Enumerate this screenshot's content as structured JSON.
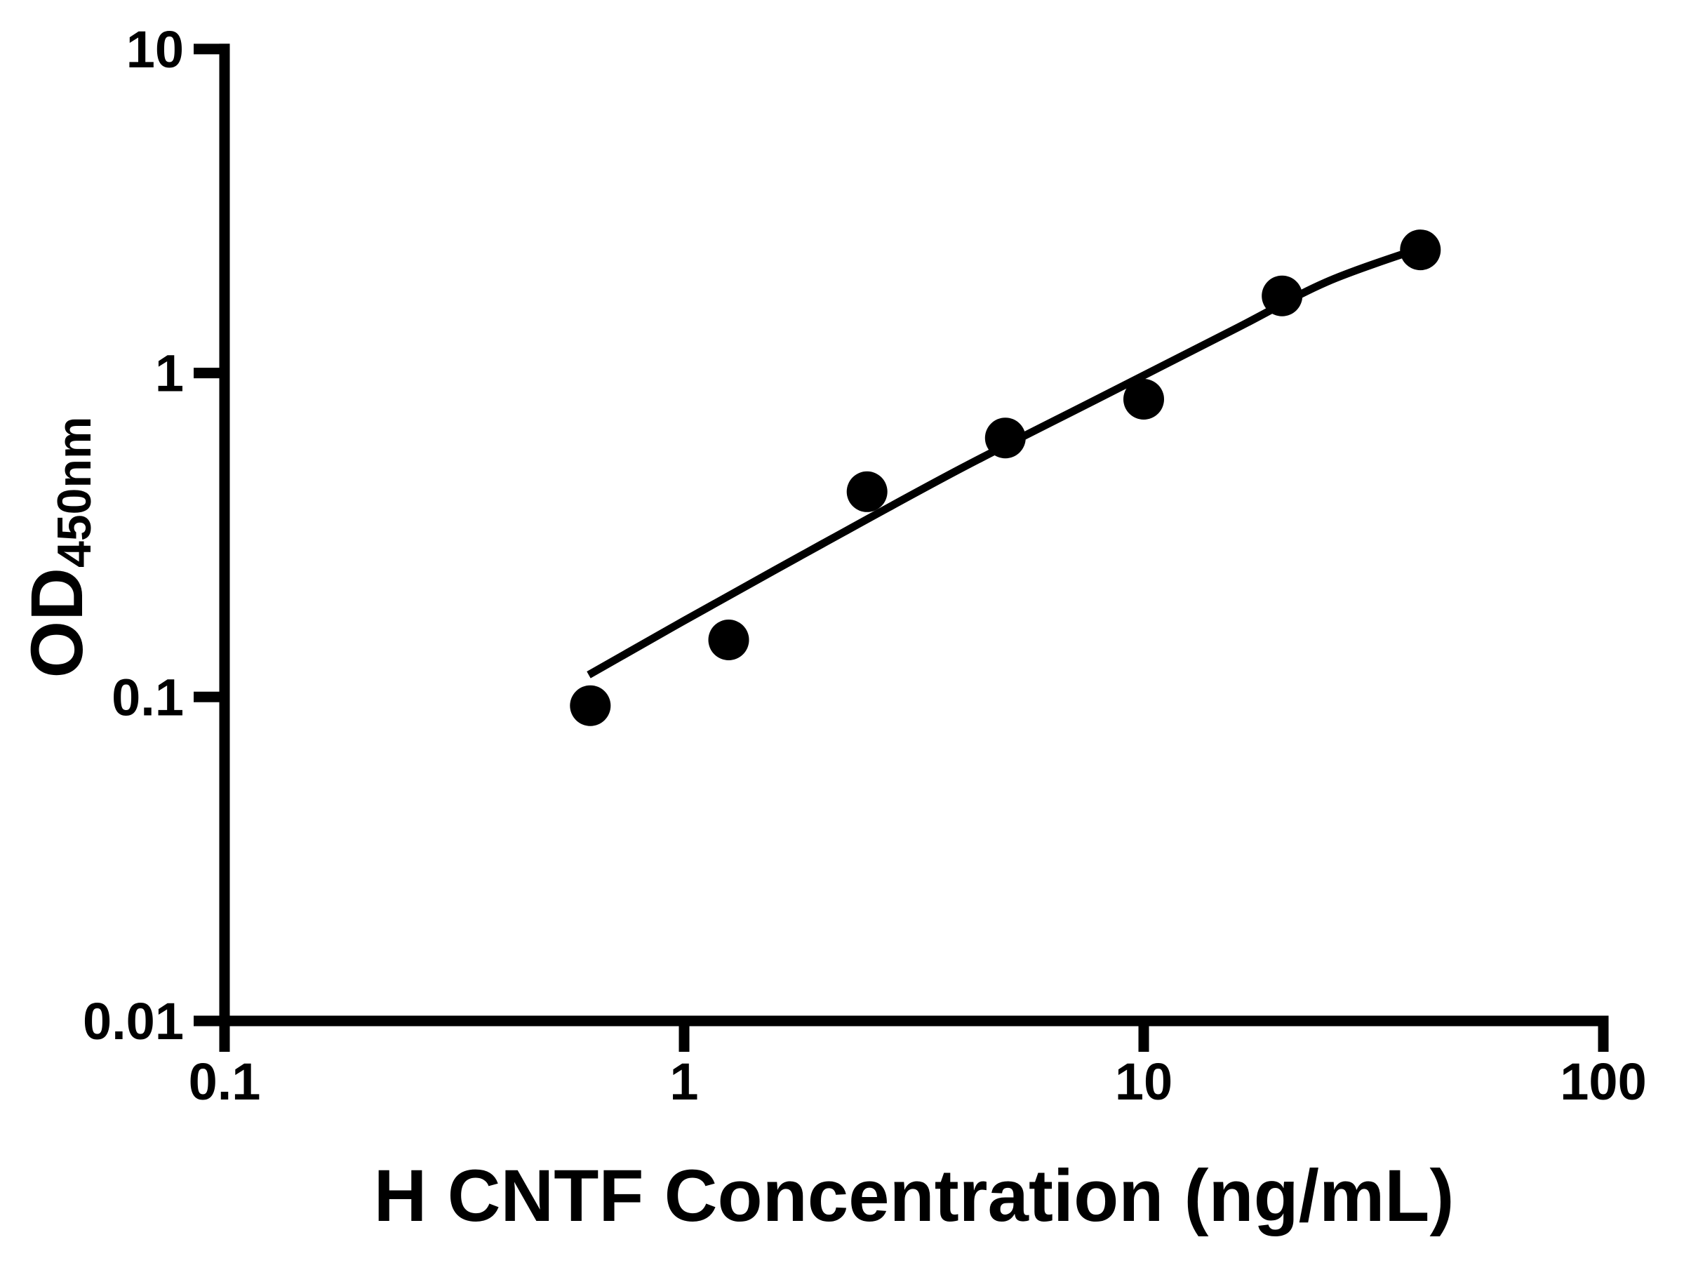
{
  "figure": {
    "kind": "ELISA standard curve plot",
    "background_color": "#ffffff",
    "foreground_color": "#000000"
  },
  "chart_data": {
    "type": "scatter",
    "title": "",
    "xlabel": "H CNTF Concentration (ng/mL)",
    "ylabel_main": "OD",
    "ylabel_subscript": "450nm",
    "x_scale": "log",
    "y_scale": "log",
    "xlim": [
      0.1,
      100
    ],
    "ylim": [
      0.01,
      10
    ],
    "x_ticks": [
      {
        "value": 0.1,
        "label": "0.1"
      },
      {
        "value": 1,
        "label": "1"
      },
      {
        "value": 10,
        "label": "10"
      },
      {
        "value": 100,
        "label": "100"
      }
    ],
    "y_ticks": [
      {
        "value": 10,
        "label": "10"
      },
      {
        "value": 1,
        "label": "1"
      },
      {
        "value": 0.1,
        "label": "0.1"
      },
      {
        "value": 0.01,
        "label": "0.01"
      }
    ],
    "grid": false,
    "legend": "none",
    "marker": {
      "shape": "circle",
      "color": "#000000",
      "radius_px": 29
    },
    "line_color": "#000000",
    "points": [
      {
        "x": 0.625,
        "y": 0.094
      },
      {
        "x": 1.25,
        "y": 0.15
      },
      {
        "x": 2.5,
        "y": 0.43
      },
      {
        "x": 5,
        "y": 0.63
      },
      {
        "x": 10,
        "y": 0.83
      },
      {
        "x": 20,
        "y": 1.73
      },
      {
        "x": 40,
        "y": 2.4
      }
    ],
    "trend_curve": [
      {
        "x": 0.62,
        "y": 0.117
      },
      {
        "x": 1.0,
        "y": 0.172
      },
      {
        "x": 2.0,
        "y": 0.297
      },
      {
        "x": 4.0,
        "y": 0.507
      },
      {
        "x": 8.0,
        "y": 0.837
      },
      {
        "x": 16,
        "y": 1.38
      },
      {
        "x": 25,
        "y": 1.91
      },
      {
        "x": 40,
        "y": 2.43
      }
    ]
  }
}
